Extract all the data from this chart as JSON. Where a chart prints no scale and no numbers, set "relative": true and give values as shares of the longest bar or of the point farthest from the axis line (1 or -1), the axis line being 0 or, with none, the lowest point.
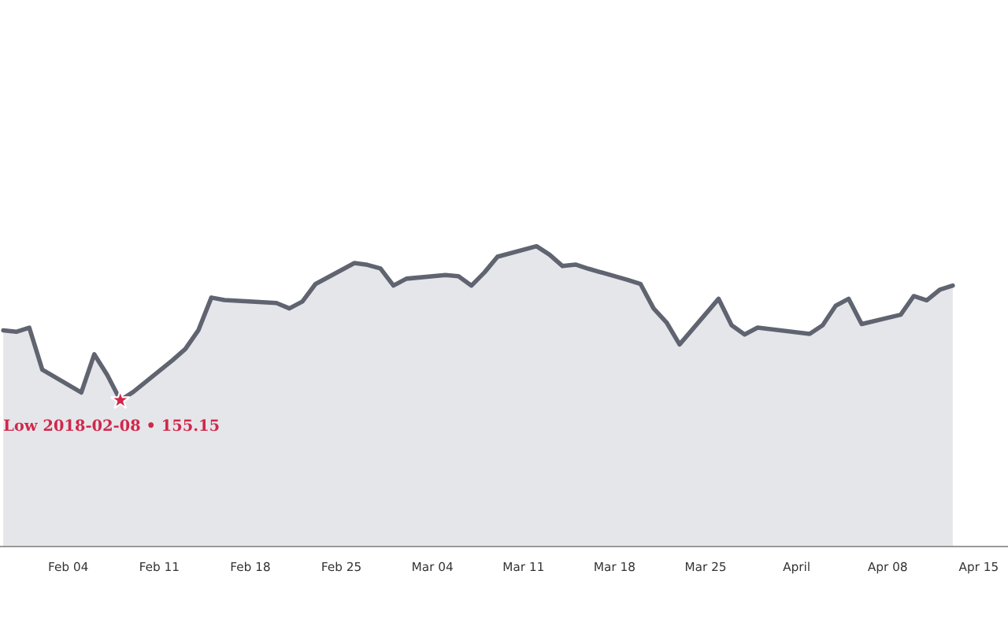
{
  "chart_data": {
    "type": "area",
    "relative": true,
    "color": "#5f6470",
    "x": [
      "2018-01-30",
      "2018-01-31",
      "2018-02-01",
      "2018-02-02",
      "2018-02-05",
      "2018-02-06",
      "2018-02-07",
      "2018-02-08",
      "2018-02-09",
      "2018-02-12",
      "2018-02-13",
      "2018-02-14",
      "2018-02-15",
      "2018-02-16",
      "2018-02-20",
      "2018-02-21",
      "2018-02-22",
      "2018-02-23",
      "2018-02-26",
      "2018-02-27",
      "2018-02-28",
      "2018-03-01",
      "2018-03-02",
      "2018-03-05",
      "2018-03-06",
      "2018-03-07",
      "2018-03-08",
      "2018-03-09",
      "2018-03-12",
      "2018-03-13",
      "2018-03-14",
      "2018-03-15",
      "2018-03-16",
      "2018-03-19",
      "2018-03-20",
      "2018-03-21",
      "2018-03-22",
      "2018-03-23",
      "2018-03-26",
      "2018-03-27",
      "2018-03-28",
      "2018-03-29",
      "2018-04-02",
      "2018-04-03",
      "2018-04-04",
      "2018-04-05",
      "2018-04-06",
      "2018-04-09",
      "2018-04-10",
      "2018-04-11",
      "2018-04-12",
      "2018-04-13"
    ],
    "values": [
      0.72,
      0.715,
      0.729,
      0.589,
      0.513,
      0.64,
      0.571,
      0.487,
      0.515,
      0.62,
      0.658,
      0.72,
      0.829,
      0.821,
      0.811,
      0.793,
      0.816,
      0.874,
      0.944,
      0.938,
      0.926,
      0.869,
      0.892,
      0.904,
      0.9,
      0.869,
      0.913,
      0.965,
      1,
      0.972,
      0.934,
      0.939,
      0.925,
      0.888,
      0.874,
      0.793,
      0.746,
      0.673,
      0.825,
      0.737,
      0.706,
      0.729,
      0.708,
      0.737,
      0.802,
      0.825,
      0.741,
      0.772,
      0.834,
      0.82,
      0.855,
      0.869
    ],
    "xlim": [
      "2018-01-29T18:00",
      "2018-04-17T06:00"
    ],
    "xticks": [
      {
        "value": "2018-02-04",
        "label": "Feb 04"
      },
      {
        "value": "2018-02-11",
        "label": "Feb 11"
      },
      {
        "value": "2018-02-18",
        "label": "Feb 18"
      },
      {
        "value": "2018-02-25",
        "label": "Feb 25"
      },
      {
        "value": "2018-03-04",
        "label": "Mar 04"
      },
      {
        "value": "2018-03-11",
        "label": "Mar 11"
      },
      {
        "value": "2018-03-18",
        "label": "Mar 18"
      },
      {
        "value": "2018-03-25",
        "label": "Mar 25"
      },
      {
        "value": "2018-04-01",
        "label": "April"
      },
      {
        "value": "2018-04-08",
        "label": "Apr 08"
      },
      {
        "value": "2018-04-15",
        "label": "Apr 15"
      }
    ],
    "annotations": [
      {
        "text": "Low 2018-02-08 • 155.15",
        "x": "2018-02-08",
        "y": 0.487
      }
    ],
    "grid": false
  }
}
